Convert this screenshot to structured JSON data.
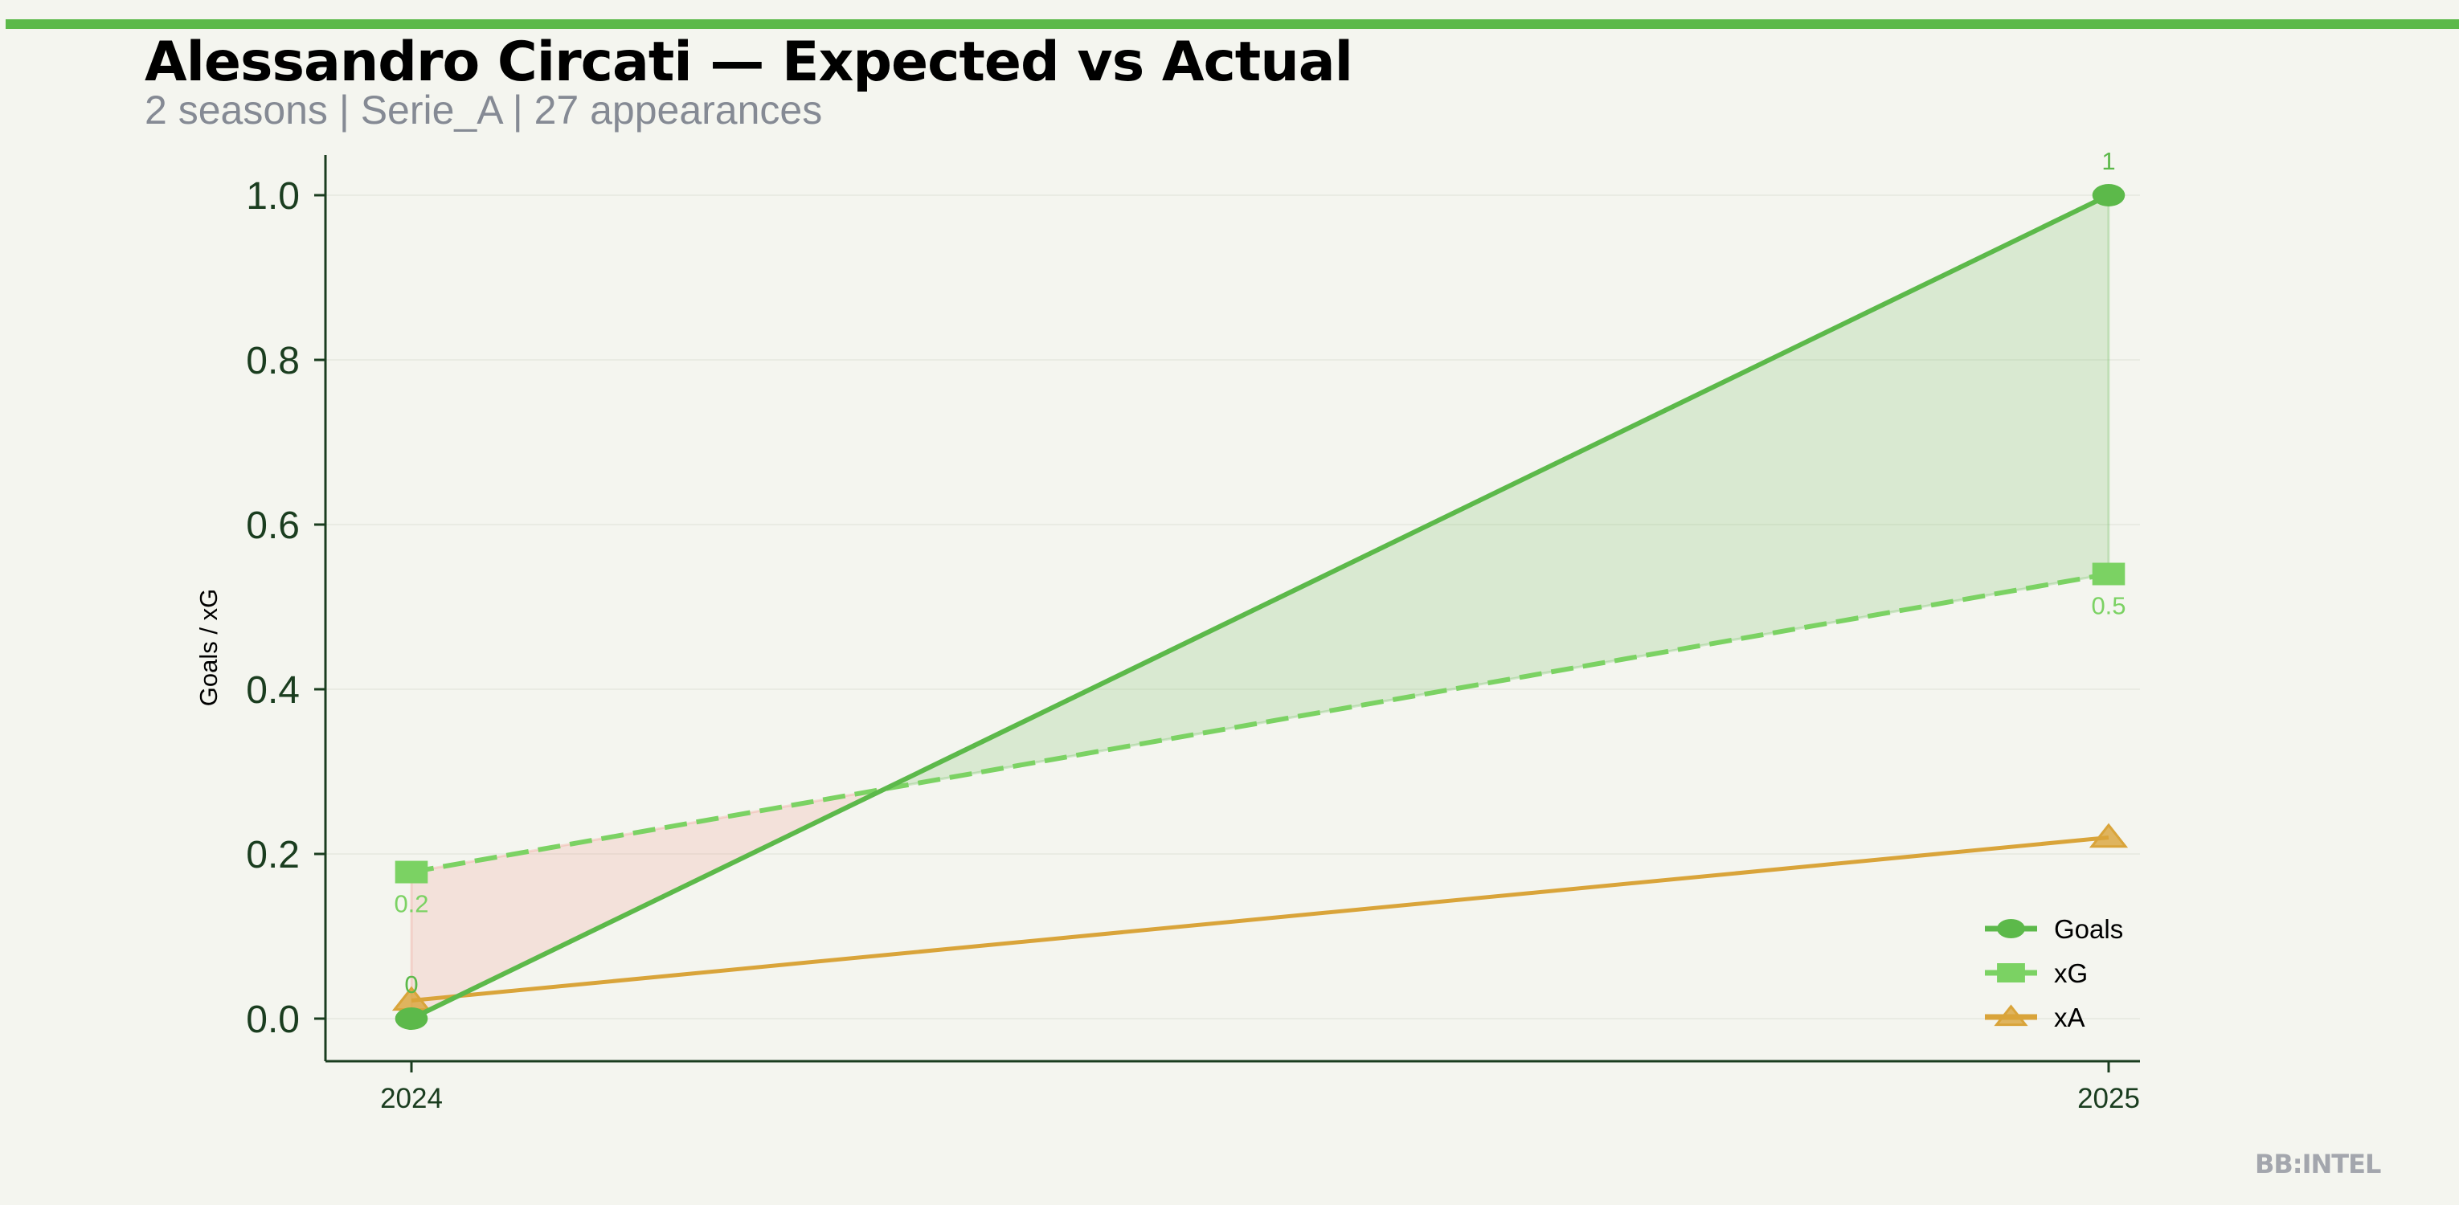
{
  "header": {
    "title": "Alessandro Circati — Expected vs Actual",
    "subtitle": "2 seasons | Serie_A | 27 appearances",
    "accent_color": "#5cb94a"
  },
  "watermark": "BB:INTEL",
  "chart_data": {
    "type": "line",
    "title": "Alessandro Circati — Expected vs Actual",
    "subtitle": "2 seasons | Serie_A | 27 appearances",
    "xlabel": "",
    "ylabel": "Goals / xG",
    "x": [
      2024,
      2025
    ],
    "x_tick_labels": [
      "2024",
      "2025"
    ],
    "ylim": [
      -0.05,
      1.05
    ],
    "y_ticks": [
      0.0,
      0.2,
      0.4,
      0.6,
      0.8,
      1.0
    ],
    "y_tick_labels": [
      "0.0",
      "0.2",
      "0.4",
      "0.6",
      "0.8",
      "1.0"
    ],
    "grid": "horizontal",
    "legend_position": "bottom-right",
    "series": [
      {
        "name": "Goals",
        "values": [
          0,
          1
        ],
        "color": "#5cb94a",
        "marker": "circle",
        "style": "solid",
        "labels": [
          "0",
          "1"
        ]
      },
      {
        "name": "xG",
        "values": [
          0.178,
          0.54
        ],
        "color": "#7bd263",
        "marker": "square",
        "style": "dashed",
        "labels": [
          "0.2",
          "0.5"
        ]
      },
      {
        "name": "xA",
        "values": [
          0.022,
          0.22
        ],
        "color": "#d9a43a",
        "marker": "triangle",
        "style": "solid"
      }
    ],
    "fills": {
      "overperformance_color": "#5cb94a",
      "underperformance_color": "#f08a7a"
    }
  }
}
